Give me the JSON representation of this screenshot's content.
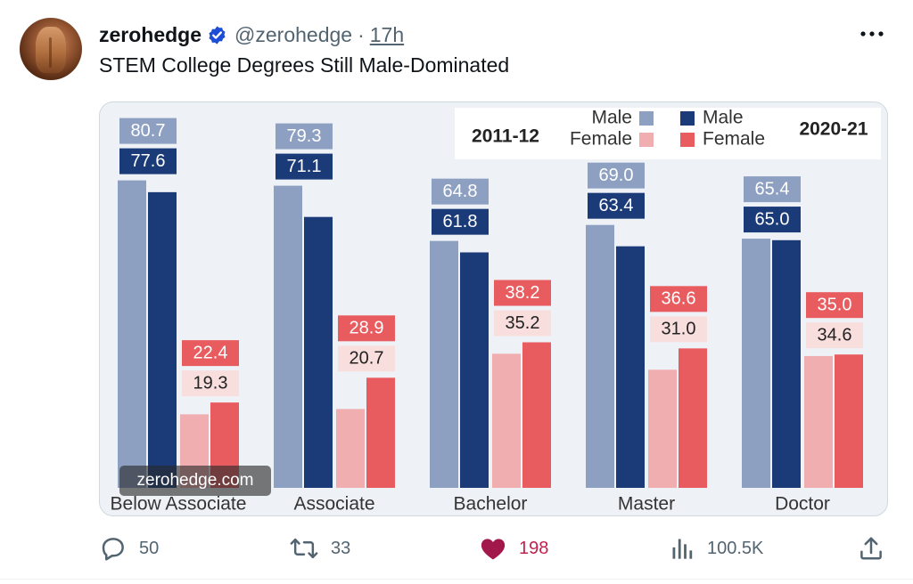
{
  "tweet": {
    "display_name": "zerohedge",
    "handle": "@zerohedge",
    "separator": "·",
    "time": "17h",
    "text": "STEM College Degrees Still Male-Dominated",
    "icons": {
      "verified": "verified-badge-icon",
      "more": "more-options-icon",
      "reply": "reply-icon",
      "retweet": "retweet-icon",
      "like": "heart-icon",
      "views": "views-bar-icon",
      "share": "share-icon"
    },
    "colors": {
      "verified": "#1d4ed8",
      "liked": "#c1214e",
      "muted": "#536471"
    }
  },
  "actions": {
    "replies": "50",
    "retweets": "33",
    "likes": "198",
    "views": "100.5K"
  },
  "chart_data": {
    "type": "bar",
    "categories": [
      "Below Associate",
      "Associate",
      "Bachelor",
      "Master",
      "Doctor"
    ],
    "series": [
      {
        "name": "Male",
        "period": "2011-12",
        "color": "#8ea0c2",
        "values": [
          80.7,
          79.3,
          64.8,
          69.0,
          65.4
        ]
      },
      {
        "name": "Male",
        "period": "2020-21",
        "color": "#1b3a78",
        "values": [
          77.6,
          71.1,
          61.8,
          63.4,
          65.0
        ]
      },
      {
        "name": "Female",
        "period": "2011-12",
        "color": "#f1aeb0",
        "values": [
          19.3,
          20.7,
          35.2,
          31.0,
          34.6
        ]
      },
      {
        "name": "Female",
        "period": "2020-21",
        "color": "#e85c5f",
        "values": [
          22.4,
          28.9,
          38.2,
          36.6,
          35.0
        ]
      }
    ],
    "legend": {
      "period_left": "2011-12",
      "period_right": "2020-21",
      "male": "Male",
      "female": "Female",
      "placement": "top-right"
    },
    "watermark": "zerohedge.com",
    "ylim": [
      0,
      100
    ]
  }
}
